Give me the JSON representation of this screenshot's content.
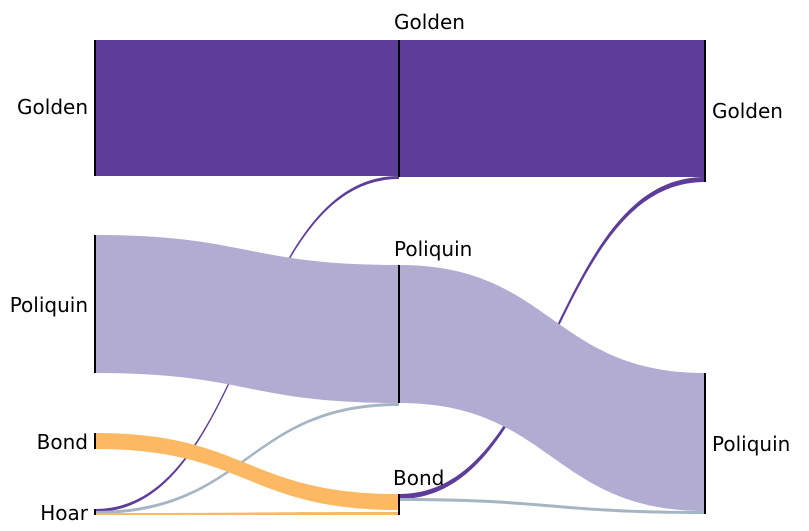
{
  "colors": {
    "golden": "#5e3c99",
    "poliquin": "#b2abd2",
    "bond": "#fdb863",
    "hoar": "#a5b5c3",
    "node_bar": "#000000"
  },
  "columns": [
    {
      "nodes": [
        {
          "id": "c0-golden",
          "label": "Golden",
          "color_key": "golden"
        },
        {
          "id": "c0-poliquin",
          "label": "Poliquin",
          "color_key": "poliquin"
        },
        {
          "id": "c0-bond",
          "label": "Bond",
          "color_key": "bond"
        },
        {
          "id": "c0-hoar",
          "label": "Hoar",
          "color_key": "hoar"
        }
      ]
    },
    {
      "nodes": [
        {
          "id": "c1-golden",
          "label": "Golden",
          "color_key": "golden"
        },
        {
          "id": "c1-poliquin",
          "label": "Poliquin",
          "color_key": "poliquin"
        },
        {
          "id": "c1-bond",
          "label": "Bond",
          "color_key": "bond"
        }
      ]
    },
    {
      "nodes": [
        {
          "id": "c2-golden",
          "label": "Golden",
          "color_key": "golden"
        },
        {
          "id": "c2-poliquin",
          "label": "Poliquin",
          "color_key": "poliquin"
        }
      ]
    }
  ],
  "flows": [
    {
      "id": "golden-to-golden-1",
      "source": "c0-golden",
      "target": "c1-golden",
      "color_key": "golden"
    },
    {
      "id": "hoar-to-golden-1",
      "source": "c0-hoar",
      "target": "c1-golden",
      "color_key": "golden"
    },
    {
      "id": "poliquin-to-poliquin-1",
      "source": "c0-poliquin",
      "target": "c1-poliquin",
      "color_key": "poliquin"
    },
    {
      "id": "hoar-to-poliquin-1",
      "source": "c0-hoar",
      "target": "c1-poliquin",
      "color_key": "hoar"
    },
    {
      "id": "bond-to-bond-1",
      "source": "c0-bond",
      "target": "c1-bond",
      "color_key": "bond"
    },
    {
      "id": "hoar-to-bond-1",
      "source": "c0-hoar",
      "target": "c1-bond",
      "color_key": "bond"
    },
    {
      "id": "golden-to-golden-2",
      "source": "c1-golden",
      "target": "c2-golden",
      "color_key": "golden"
    },
    {
      "id": "bond-to-golden-2",
      "source": "c1-bond",
      "target": "c2-golden",
      "color_key": "golden"
    },
    {
      "id": "poliquin-to-poliquin-2",
      "source": "c1-poliquin",
      "target": "c2-poliquin",
      "color_key": "poliquin"
    },
    {
      "id": "bond-to-poliquin-2",
      "source": "c1-bond",
      "target": "c2-poliquin",
      "color_key": "hoar"
    }
  ]
}
